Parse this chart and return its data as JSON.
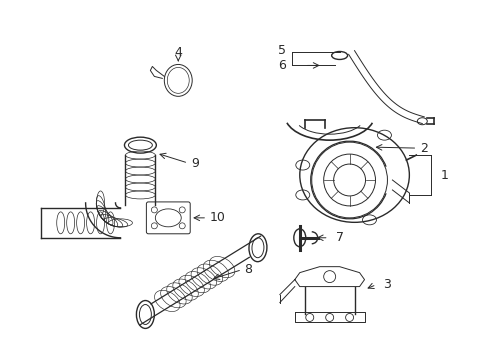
{
  "bg_color": "#ffffff",
  "line_color": "#2a2a2a",
  "figure_width": 4.89,
  "figure_height": 3.6,
  "dpi": 100,
  "label_fontsize": 9.0
}
